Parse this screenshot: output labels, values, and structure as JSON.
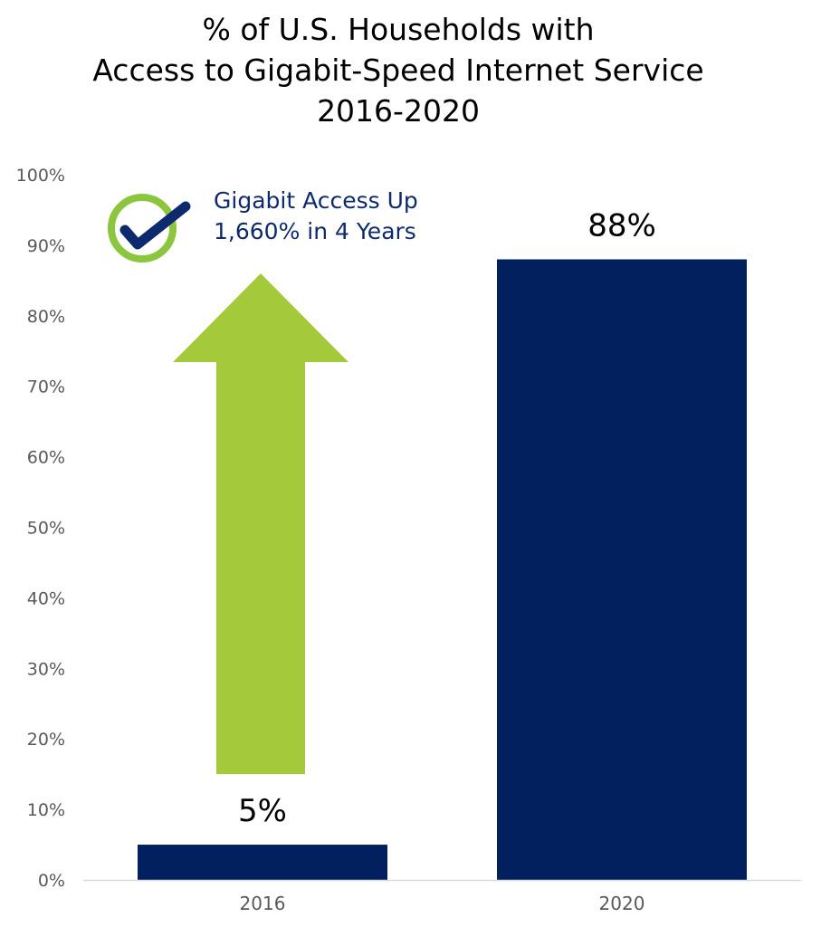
{
  "chart_data": {
    "type": "bar",
    "title": [
      "% of U.S. Households with",
      "Access to Gigabit-Speed Internet Service",
      "2016-2020"
    ],
    "categories": [
      "2016",
      "2020"
    ],
    "values": [
      5,
      88
    ],
    "data_labels": [
      "5%",
      "88%"
    ],
    "ylim": [
      0,
      100
    ],
    "yticks": [
      "0%",
      "10%",
      "20%",
      "30%",
      "40%",
      "50%",
      "60%",
      "70%",
      "80%",
      "90%",
      "100%"
    ],
    "xlabel": "",
    "ylabel": "",
    "grid": false,
    "legend": "none",
    "annotation": {
      "lines": [
        "Gigabit Access Up",
        "1,660% in 4 Years"
      ],
      "icon": "checkmark-circle-icon",
      "arrow": "up-arrow-icon",
      "arrow_from_value": 15,
      "arrow_to_value": 86
    }
  },
  "colors": {
    "bar": "#021f5e",
    "arrow": "#a4c93a",
    "check_ring": "#8cc63f",
    "check_mark": "#0e2a6e",
    "annotation_text": "#0e2a6e",
    "tick_text": "#595959",
    "axis_line": "#d9d9d9"
  }
}
